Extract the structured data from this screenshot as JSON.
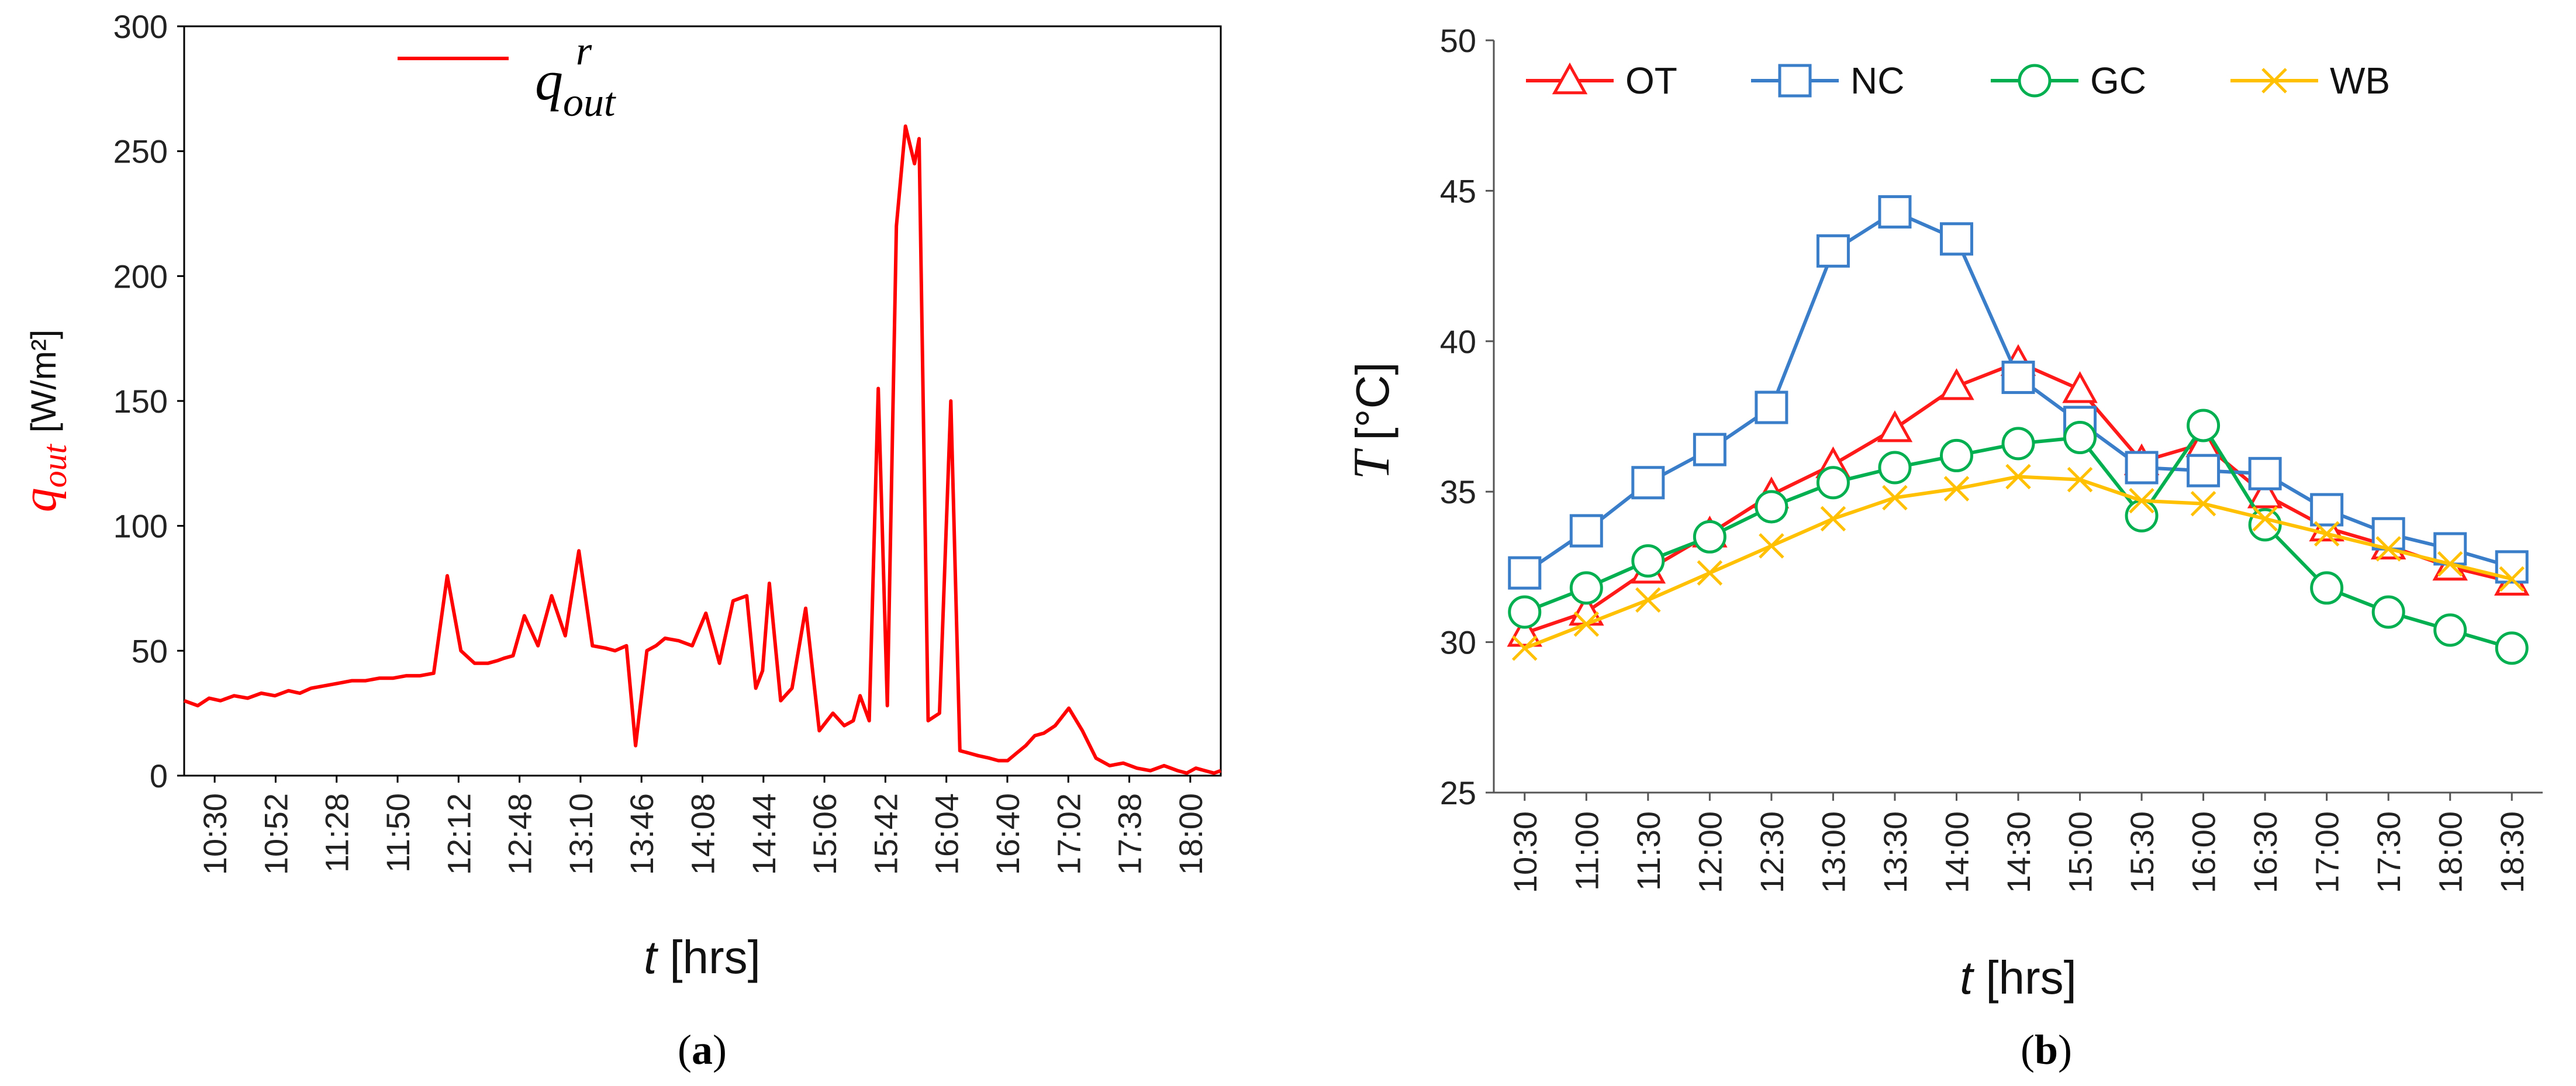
{
  "chart_data": [
    {
      "panel": "a",
      "type": "line",
      "caption_letter": "a",
      "xlabel_italic": "t",
      "xlabel_rest": "[hrs]",
      "ylabel_symbol": "q",
      "ylabel_sub": "out",
      "ylabel_unit": "[W/m²]",
      "legend": {
        "symbol": "q",
        "sup": "r",
        "sub": "out",
        "placement": "top-center"
      },
      "color": "#ff0000",
      "ylim": [
        0,
        300
      ],
      "yticks": [
        0,
        50,
        100,
        150,
        200,
        250,
        300
      ],
      "xlim": [
        630,
        1087
      ],
      "xtick_labels": [
        "10:30",
        "10:52",
        "11:28",
        "11:50",
        "12:12",
        "12:48",
        "13:10",
        "13:46",
        "14:08",
        "14:44",
        "15:06",
        "15:42",
        "16:04",
        "16:40",
        "17:02",
        "17:38",
        "18:00"
      ],
      "x": [
        630,
        636,
        641,
        646,
        652,
        658,
        664,
        670,
        676,
        681,
        686,
        692,
        698,
        704,
        710,
        716,
        722,
        728,
        734,
        740,
        746,
        752,
        758,
        764,
        768,
        771,
        775,
        780,
        786,
        792,
        798,
        804,
        810,
        816,
        820,
        825,
        829,
        834,
        838,
        842,
        848,
        854,
        860,
        866,
        872,
        878,
        882,
        885,
        888,
        893,
        898,
        904,
        910,
        916,
        921,
        925,
        928,
        932,
        936,
        940,
        944,
        948,
        952,
        954,
        958,
        963,
        968,
        972,
        976,
        980,
        985,
        989,
        993,
        997,
        1001,
        1005,
        1009,
        1014,
        1020,
        1026,
        1032,
        1038,
        1044,
        1050,
        1056,
        1062,
        1068,
        1072,
        1076,
        1080,
        1084,
        1087
      ],
      "y": [
        30,
        28,
        31,
        30,
        32,
        31,
        33,
        32,
        34,
        33,
        35,
        36,
        37,
        38,
        38,
        39,
        39,
        40,
        40,
        41,
        80,
        50,
        45,
        45,
        46,
        47,
        48,
        64,
        52,
        72,
        56,
        90,
        52,
        51,
        50,
        52,
        12,
        50,
        52,
        55,
        54,
        52,
        65,
        45,
        70,
        72,
        35,
        42,
        77,
        30,
        35,
        67,
        18,
        25,
        20,
        22,
        32,
        22,
        155,
        28,
        220,
        260,
        245,
        255,
        22,
        25,
        150,
        10,
        9,
        8,
        7,
        6,
        6,
        9,
        12,
        16,
        17,
        20,
        27,
        18,
        7,
        4,
        5,
        3,
        2,
        4,
        2,
        1,
        3,
        2,
        1,
        2
      ]
    },
    {
      "panel": "b",
      "type": "line",
      "caption_letter": "b",
      "xlabel_italic": "t",
      "xlabel_rest": "[hrs]",
      "ylabel_italic": "T",
      "ylabel_rest": "[°C]",
      "ylim": [
        25,
        50
      ],
      "yticks": [
        25,
        30,
        35,
        40,
        45,
        50
      ],
      "categories": [
        "10:30",
        "11:00",
        "11:30",
        "12:00",
        "12:30",
        "13:00",
        "13:30",
        "14:00",
        "14:30",
        "15:00",
        "15:30",
        "16:00",
        "16:30",
        "17:00",
        "17:30",
        "18:00",
        "18:30"
      ],
      "legend_placement": "top",
      "series": [
        {
          "name": "OT",
          "color": "#ff1a1a",
          "marker": "triangle",
          "values": [
            30.3,
            31.0,
            32.4,
            33.6,
            34.9,
            35.9,
            37.1,
            38.5,
            39.3,
            38.4,
            36.0,
            36.6,
            34.9,
            33.8,
            33.2,
            32.5,
            32.0
          ]
        },
        {
          "name": "NC",
          "color": "#3a7dc9",
          "marker": "square",
          "values": [
            32.3,
            33.7,
            35.3,
            36.4,
            37.8,
            43.0,
            44.3,
            43.4,
            38.8,
            37.3,
            35.8,
            35.7,
            35.6,
            34.4,
            33.6,
            33.1,
            32.5
          ]
        },
        {
          "name": "GC",
          "color": "#00b050",
          "marker": "circle",
          "values": [
            31.0,
            31.8,
            32.7,
            33.5,
            34.5,
            35.3,
            35.8,
            36.2,
            36.6,
            36.8,
            34.2,
            37.2,
            33.9,
            31.8,
            31.0,
            30.4,
            29.8
          ]
        },
        {
          "name": "WB",
          "color": "#ffc000",
          "marker": "x",
          "values": [
            29.8,
            30.6,
            31.4,
            32.3,
            33.2,
            34.1,
            34.8,
            35.1,
            35.5,
            35.4,
            34.7,
            34.6,
            34.1,
            33.6,
            33.1,
            32.6,
            32.1
          ]
        }
      ]
    }
  ]
}
